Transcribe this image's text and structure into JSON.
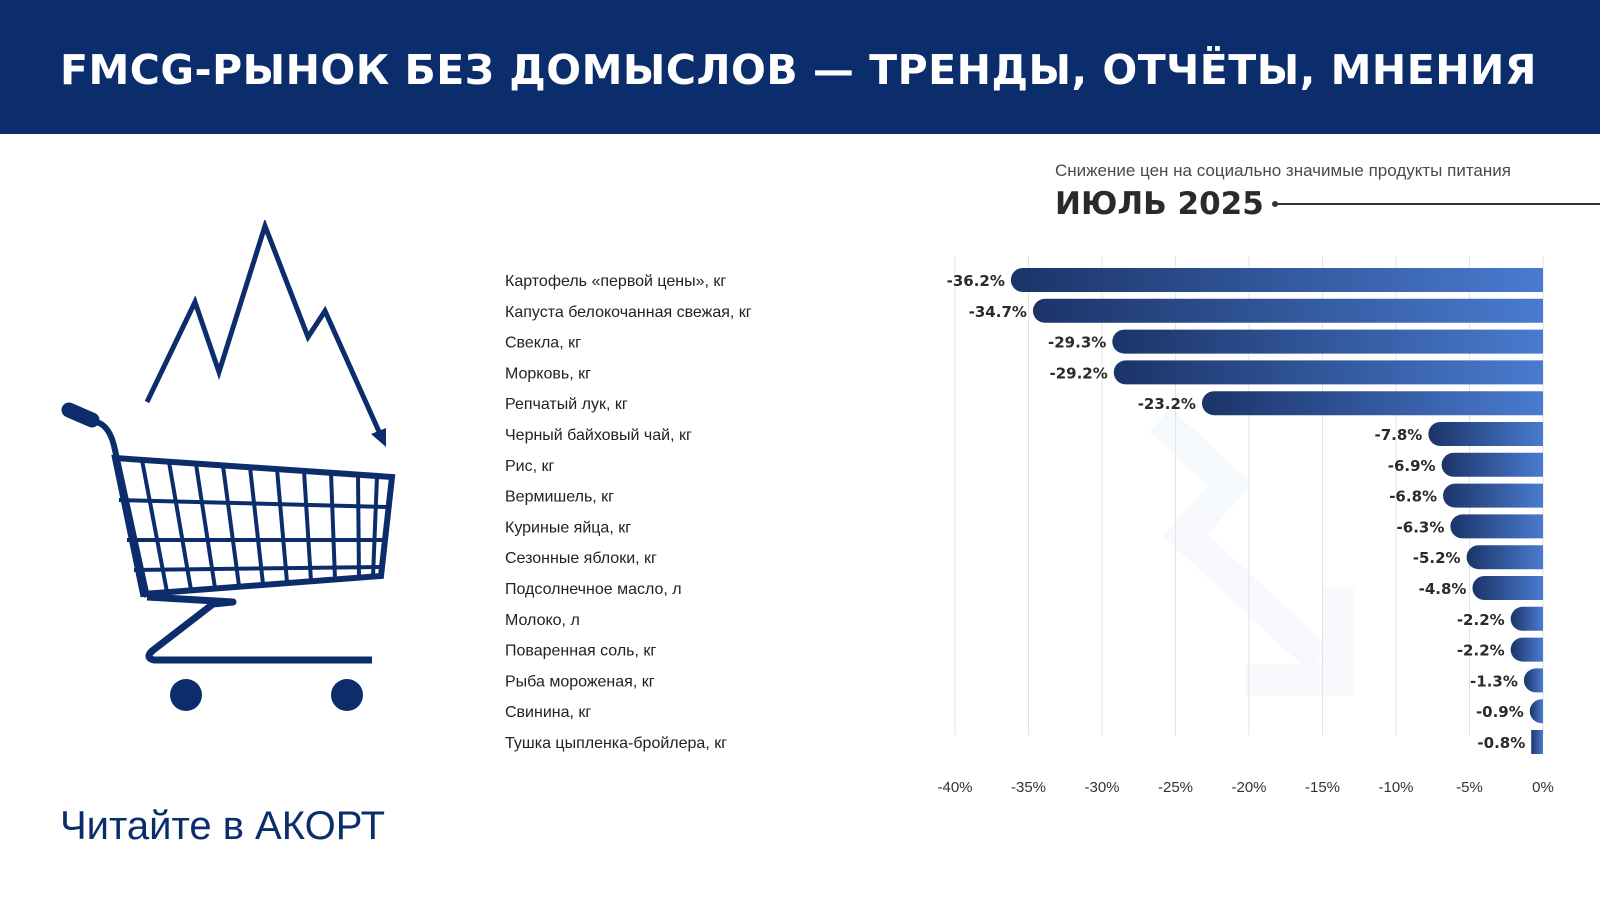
{
  "header": {
    "title": "FMCG-РЫНОК БЕЗ ДОМЫСЛОВ — ТРЕНДЫ, ОТЧЁТЫ, МНЕНИЯ"
  },
  "cta": {
    "text": "Читайте в АКОРТ"
  },
  "colors": {
    "brand": "#0c2d6b",
    "bar_dark": "#1b3468",
    "bar_light": "#4a7bd0"
  },
  "icons": {
    "illustration": "shopping-cart-icon",
    "trend": "falling-trend-arrow-icon"
  },
  "chart_data": {
    "type": "bar",
    "orientation": "horizontal",
    "title": "Снижение цен на социально значимые продукты питания",
    "subtitle": "ИЮЛЬ 2025",
    "categories": [
      "Картофель «первой цены», кг",
      "Капуста белокочанная свежая, кг",
      "Свекла, кг",
      "Морковь, кг",
      "Репчатый лук, кг",
      "Черный байховый чай, кг",
      "Рис, кг",
      "Вермишель, кг",
      "Куриные яйца, кг",
      "Сезонные яблоки, кг",
      "Подсолнечное масло, л",
      "Молоко, л",
      "Поваренная соль, кг",
      "Рыба мороженая, кг",
      "Свинина, кг",
      "Тушка цыпленка-бройлера, кг"
    ],
    "values": [
      -36.2,
      -34.7,
      -29.3,
      -29.2,
      -23.2,
      -7.8,
      -6.9,
      -6.8,
      -6.3,
      -5.2,
      -4.8,
      -2.2,
      -2.2,
      -1.3,
      -0.9,
      -0.8
    ],
    "value_labels": [
      "-36.2%",
      "-34.7%",
      "-29.3%",
      "-29.2%",
      "-23.2%",
      "-7.8%",
      "-6.9%",
      "-6.8%",
      "-6.3%",
      "-5.2%",
      "-4.8%",
      "-2.2%",
      "-2.2%",
      "-1.3%",
      "-0.9%",
      "-0.8%"
    ],
    "xlim": [
      -40,
      0
    ],
    "xticks": [
      -40,
      -35,
      -30,
      -25,
      -20,
      -15,
      -10,
      -5,
      0
    ],
    "xtick_labels": [
      "-40%",
      "-35%",
      "-30%",
      "-25%",
      "-20%",
      "-15%",
      "-10%",
      "-5%",
      "0%"
    ],
    "grid": true,
    "legend": "none"
  }
}
